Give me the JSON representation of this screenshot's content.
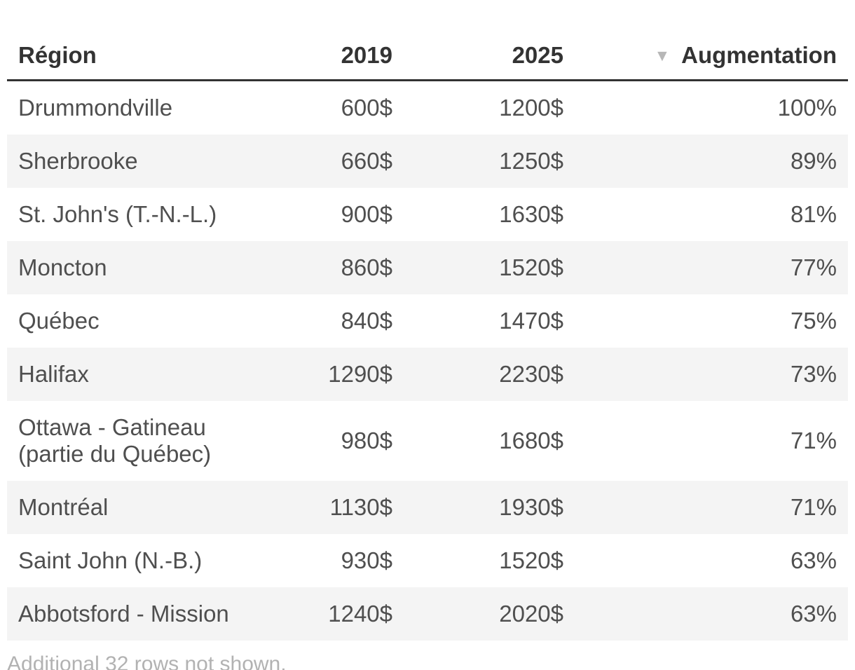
{
  "chart_data": {
    "type": "table",
    "columns": [
      "Région",
      "2019",
      "2025",
      "Augmentation"
    ],
    "rows": [
      [
        "Drummondville",
        "600$",
        "1200$",
        "100%"
      ],
      [
        "Sherbrooke",
        "660$",
        "1250$",
        "89%"
      ],
      [
        "St. John's (T.-N.-L.)",
        "900$",
        "1630$",
        "81%"
      ],
      [
        "Moncton",
        "860$",
        "1520$",
        "77%"
      ],
      [
        "Québec",
        "840$",
        "1470$",
        "75%"
      ],
      [
        "Halifax",
        "1290$",
        "2230$",
        "73%"
      ],
      [
        "Ottawa - Gatineau (partie du Québec)",
        "980$",
        "1680$",
        "71%"
      ],
      [
        "Montréal",
        "1130$",
        "1930$",
        "71%"
      ],
      [
        "Saint John (N.-B.)",
        "930$",
        "1520$",
        "63%"
      ],
      [
        "Abbotsford - Mission",
        "1240$",
        "2020$",
        "63%"
      ]
    ],
    "sort": {
      "column": "Augmentation",
      "direction": "desc"
    },
    "note": "Additional 32 rows not shown.",
    "layout_hints": {
      "striped_rows": "even rows shaded",
      "stripe_color": "#f4f4f4",
      "header_border_color": "#333333",
      "header_text_color": "#333333",
      "body_text_color": "#4f4f4f",
      "note_text_color": "#b2b2b2",
      "sort_icon_color": "#b7b7b7"
    }
  },
  "icons": {
    "sort_desc": "▼"
  }
}
